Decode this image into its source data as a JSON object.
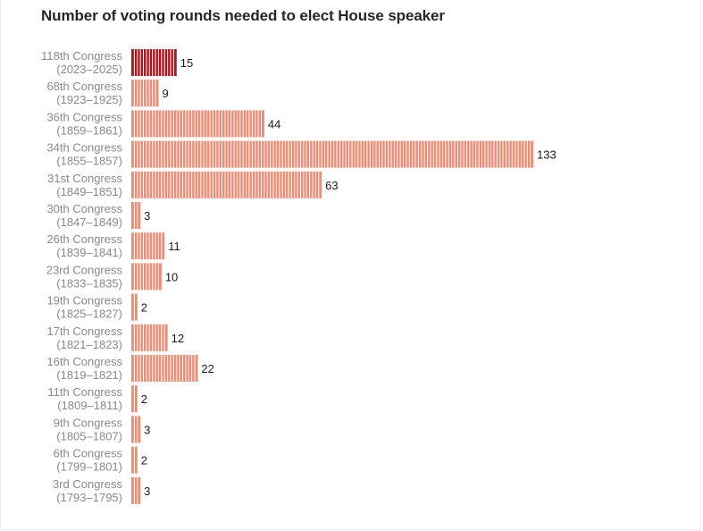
{
  "chart_data": {
    "type": "bar",
    "orientation": "horizontal",
    "title": "Number of voting rounds needed to elect House speaker",
    "xlabel": "",
    "ylabel": "",
    "xlim": [
      0,
      133
    ],
    "grid": false,
    "legend": "none",
    "highlight_color": "#b3111a",
    "bar_color": "#f08a72",
    "categories": [
      {
        "name": "118th Congress",
        "years": "(2023–2025)",
        "value": 15,
        "highlight": true
      },
      {
        "name": "68th Congress",
        "years": "(1923–1925)",
        "value": 9,
        "highlight": false
      },
      {
        "name": "36th Congress",
        "years": "(1859–1861)",
        "value": 44,
        "highlight": false
      },
      {
        "name": "34th Congress",
        "years": "(1855–1857)",
        "value": 133,
        "highlight": false
      },
      {
        "name": "31st Congress",
        "years": "(1849–1851)",
        "value": 63,
        "highlight": false
      },
      {
        "name": "30th Congress",
        "years": "(1847–1849)",
        "value": 3,
        "highlight": false
      },
      {
        "name": "26th Congress",
        "years": "(1839–1841)",
        "value": 11,
        "highlight": false
      },
      {
        "name": "23rd Congress",
        "years": "(1833–1835)",
        "value": 10,
        "highlight": false
      },
      {
        "name": "19th Congress",
        "years": "(1825–1827)",
        "value": 2,
        "highlight": false
      },
      {
        "name": "17th Congress",
        "years": "(1821–1823)",
        "value": 12,
        "highlight": false
      },
      {
        "name": "16th Congress",
        "years": "(1819–1821)",
        "value": 22,
        "highlight": false
      },
      {
        "name": "11th Congress",
        "years": "(1809–1811)",
        "value": 2,
        "highlight": false
      },
      {
        "name": "9th Congress",
        "years": "(1805–1807)",
        "value": 3,
        "highlight": false
      },
      {
        "name": "6th Congress",
        "years": "(1799–1801)",
        "value": 2,
        "highlight": false
      },
      {
        "name": "3rd Congress",
        "years": "(1793–1795)",
        "value": 3,
        "highlight": false
      }
    ]
  }
}
